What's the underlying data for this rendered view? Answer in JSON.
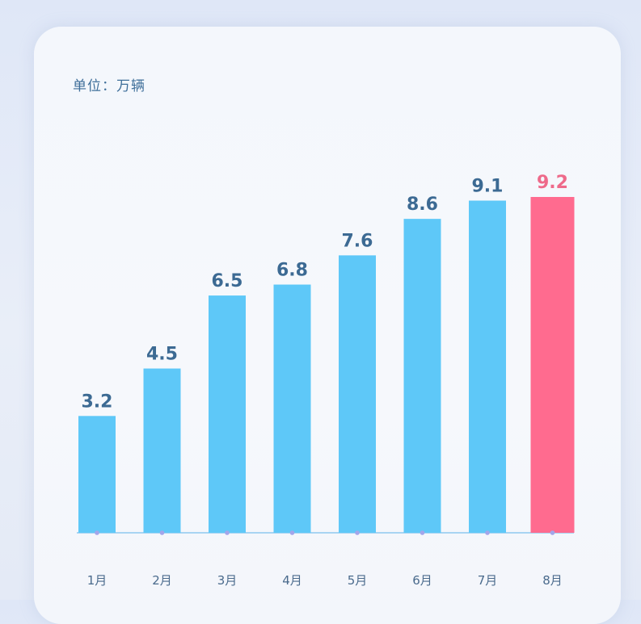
{
  "chart_data": {
    "type": "bar",
    "unit_label": "单位：万辆",
    "categories": [
      "1月",
      "2月",
      "3月",
      "4月",
      "5月",
      "6月",
      "7月",
      "8月"
    ],
    "values": [
      3.2,
      4.5,
      6.5,
      6.8,
      7.6,
      8.6,
      9.1,
      9.2
    ],
    "value_labels": [
      "3.2",
      "4.5",
      "6.5",
      "6.8",
      "7.6",
      "8.6",
      "9.1",
      "9.2"
    ],
    "ylim": [
      0,
      9.2
    ],
    "highlight_index": 7,
    "colors": {
      "bar": "#5ec8f8",
      "highlight_bar": "#ff6b8f",
      "value_text": "#3c6a93",
      "highlight_text": "#ee6a8a",
      "axis": "#8fc9ef",
      "axis_dot": "#a3a6ea"
    }
  }
}
